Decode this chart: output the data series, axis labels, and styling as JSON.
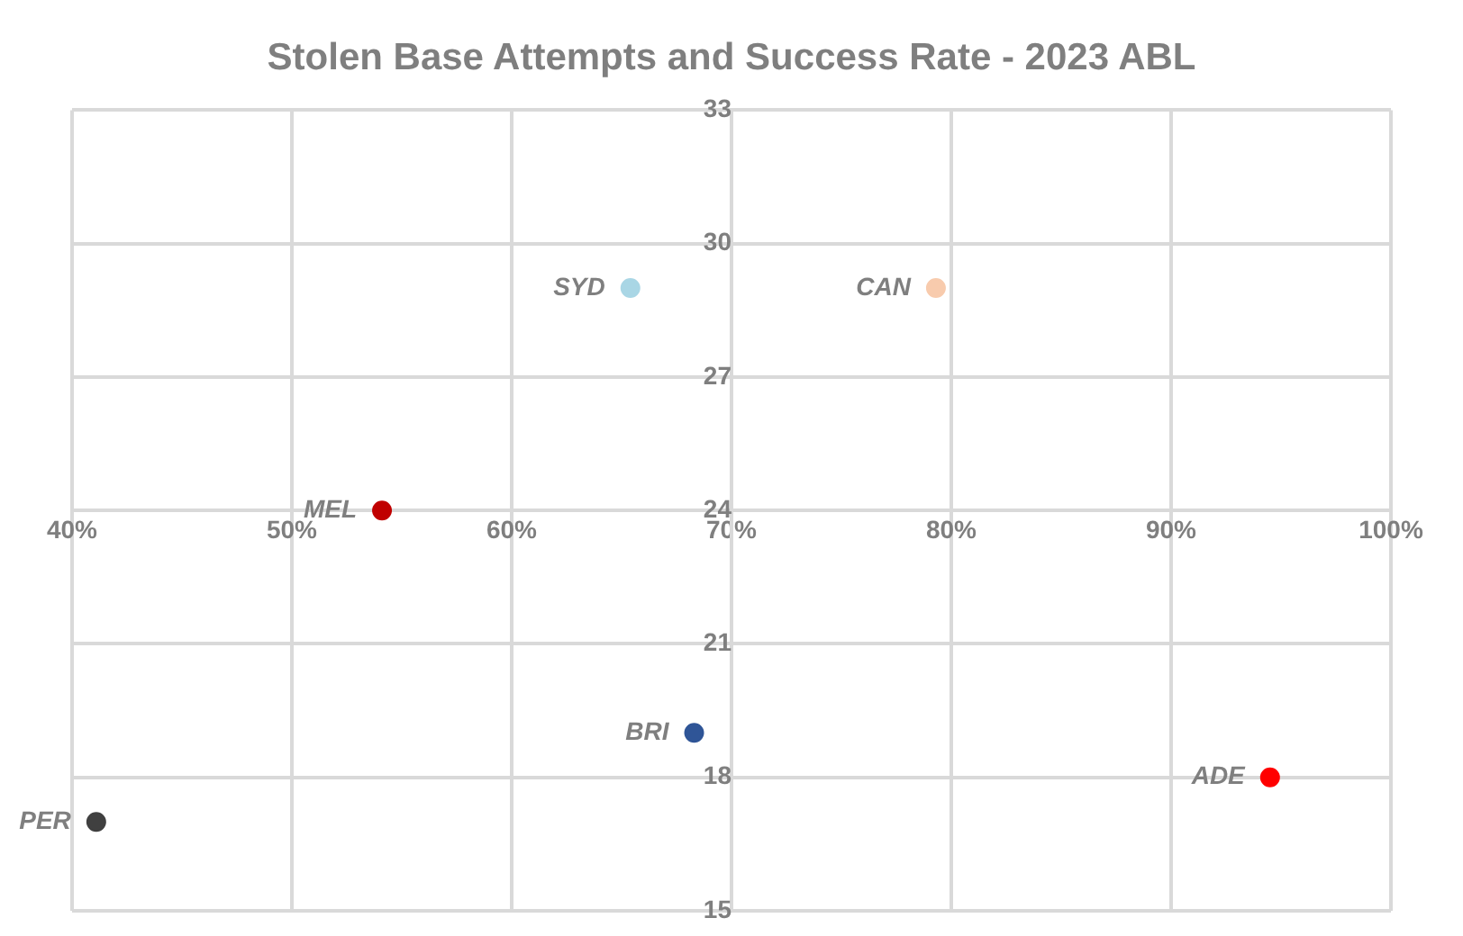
{
  "chart_data": {
    "type": "scatter",
    "title": "Stolen Base Attempts and Success Rate - 2023 ABL",
    "xlim": [
      40,
      100
    ],
    "xticks": [
      {
        "value": 40,
        "label": "40%"
      },
      {
        "value": 50,
        "label": "50%"
      },
      {
        "value": 60,
        "label": "60%"
      },
      {
        "value": 70,
        "label": "70%"
      },
      {
        "value": 80,
        "label": "80%"
      },
      {
        "value": 90,
        "label": "90%"
      },
      {
        "value": 100,
        "label": "100%"
      }
    ],
    "ylim": [
      15,
      33
    ],
    "yticks": [
      15,
      18,
      21,
      24,
      27,
      30,
      33
    ],
    "grid": true,
    "legend": false,
    "marker": "circle",
    "series": [
      {
        "name": "SYD",
        "color": "#a9d6e5",
        "x": [
          65.4
        ],
        "values": [
          29
        ]
      },
      {
        "name": "CAN",
        "color": "#f8cbad",
        "x": [
          79.3
        ],
        "values": [
          29
        ]
      },
      {
        "name": "MEL",
        "color": "#c00000",
        "x": [
          54.1
        ],
        "values": [
          24
        ]
      },
      {
        "name": "BRI",
        "color": "#2f5597",
        "x": [
          68.3
        ],
        "values": [
          19
        ]
      },
      {
        "name": "ADE",
        "color": "#ff0000",
        "x": [
          94.5
        ],
        "values": [
          18
        ]
      },
      {
        "name": "PER",
        "color": "#404040",
        "x": [
          41.1
        ],
        "values": [
          17
        ]
      }
    ]
  }
}
